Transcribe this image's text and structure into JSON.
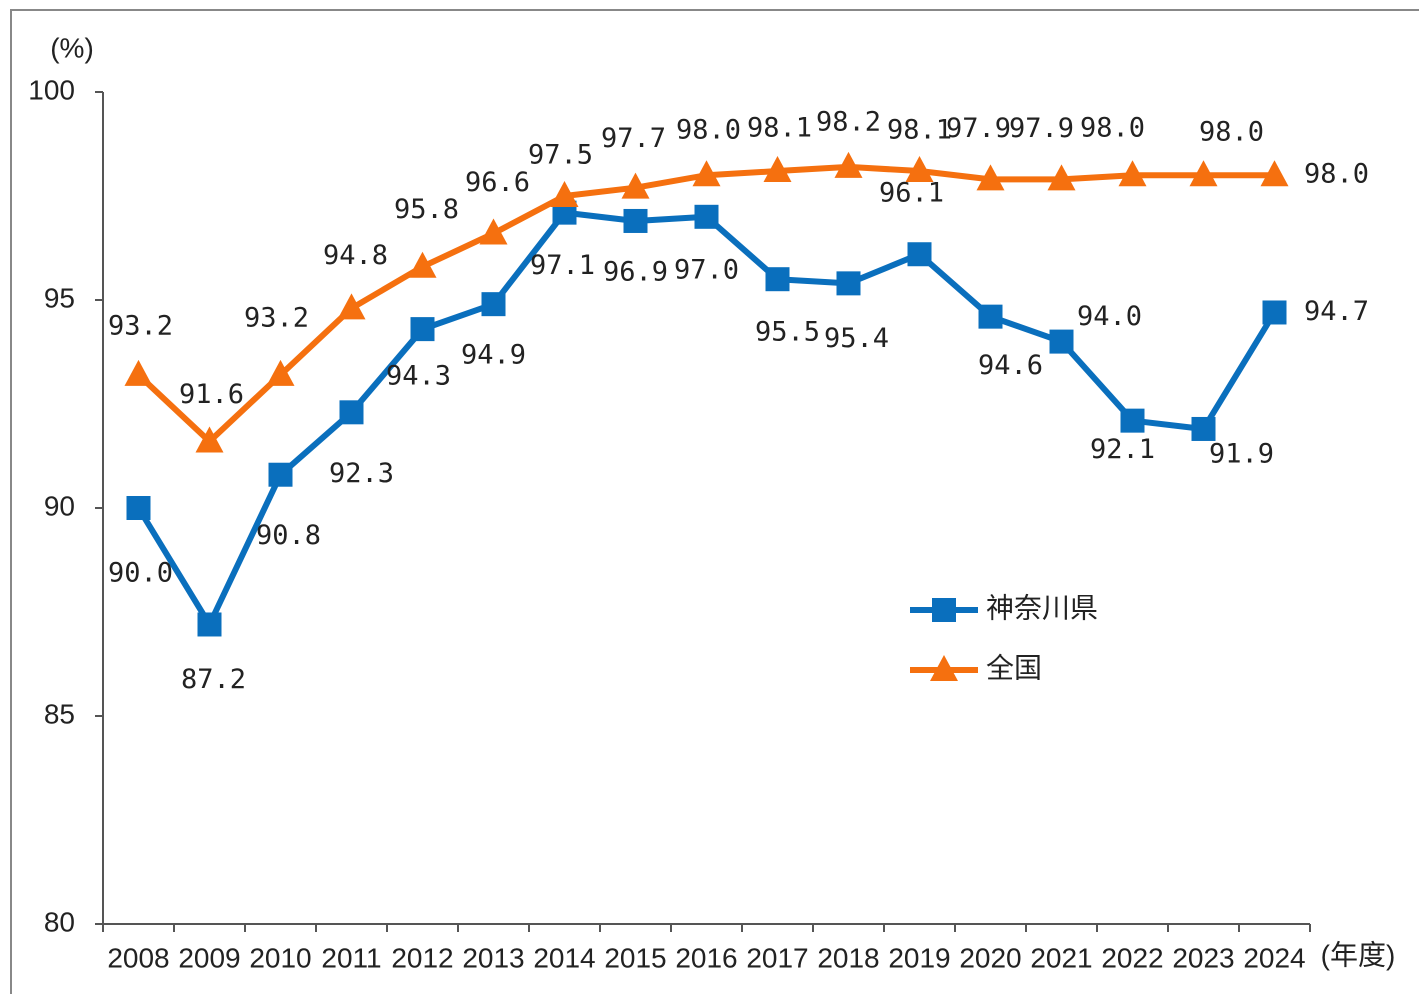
{
  "chart_data": {
    "type": "line",
    "y_label": "(%)",
    "x_label": "(年度)",
    "categories": [
      "2008",
      "2009",
      "2010",
      "2011",
      "2012",
      "2013",
      "2014",
      "2015",
      "2016",
      "2017",
      "2018",
      "2019",
      "2020",
      "2021",
      "2022",
      "2023",
      "2024"
    ],
    "series": [
      {
        "name": "神奈川県",
        "color": "#0a6fbd",
        "marker": "square",
        "values": [
          90.0,
          87.2,
          90.8,
          92.3,
          94.3,
          94.9,
          97.1,
          96.9,
          97.0,
          95.5,
          95.4,
          96.1,
          94.6,
          94.0,
          92.1,
          91.9,
          94.7
        ],
        "value_labels": [
          "90.0",
          "87.2",
          "90.8",
          "92.3",
          "94.3",
          "94.9",
          "97.1",
          "96.9",
          "97.0",
          "95.5",
          "95.4",
          "96.1",
          "94.6",
          "94.0",
          "92.1",
          "91.9",
          "94.7"
        ]
      },
      {
        "name": "全国",
        "color": "#f5700f",
        "marker": "triangle",
        "values": [
          93.2,
          91.6,
          93.2,
          94.8,
          95.8,
          96.6,
          97.5,
          97.7,
          98.0,
          98.1,
          98.2,
          98.1,
          97.9,
          97.9,
          98.0,
          98.0,
          98.0
        ],
        "value_labels": [
          "93.2",
          "91.6",
          "93.2",
          "94.8",
          "95.8",
          "96.6",
          "97.5",
          "97.7",
          "98.0",
          "98.1",
          "98.2",
          "98.1",
          "97.9",
          "97.9",
          "98.0",
          "98.0",
          "98.0"
        ]
      }
    ],
    "ylim": [
      80,
      100
    ],
    "yticks": [
      80,
      85,
      90,
      95,
      100
    ],
    "legend": "right",
    "grid": false
  }
}
